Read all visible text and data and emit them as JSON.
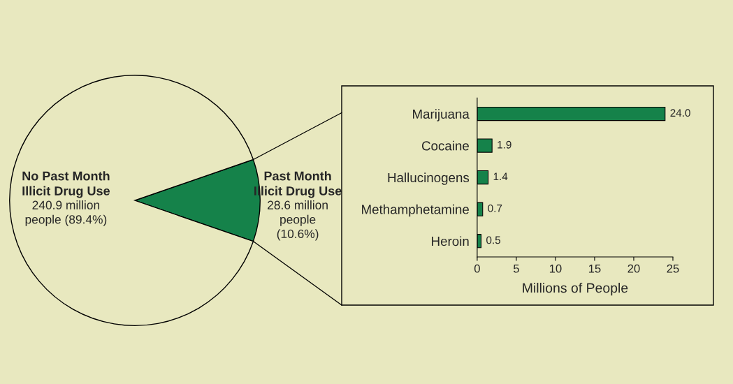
{
  "chart_data": [
    {
      "type": "pie",
      "categories": [
        "Past Month\nIllicit Drug Use",
        "No Past Month\nIllicit Drug Use"
      ],
      "values": [
        10.6,
        89.4
      ],
      "colors": [
        "#15824a",
        "#e8e8bf"
      ],
      "value_labels": [
        "28.6 million\npeople\n(10.6%)",
        "240.9 million\npeople (89.4%)"
      ]
    },
    {
      "type": "bar",
      "orientation": "horizontal",
      "categories": [
        "Marijuana",
        "Cocaine",
        "Hallucinogens",
        "Methamphetamine",
        "Heroin"
      ],
      "values": [
        24.0,
        1.9,
        1.4,
        0.7,
        0.5
      ],
      "color": "#15824a",
      "value_labels": [
        "24.0",
        "1.9",
        "1.4",
        "0.7",
        "0.5"
      ],
      "xlim": [
        0,
        25
      ],
      "xticks": [
        0,
        5,
        10,
        15,
        20,
        25
      ],
      "xlabel": "Millions of People"
    }
  ]
}
